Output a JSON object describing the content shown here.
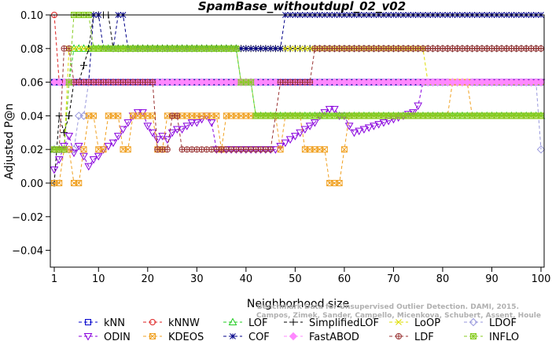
{
  "chart_data": {
    "type": "line",
    "title": "SpamBase_withoutdupl_02_v02",
    "xlabel": "Neighborhood size",
    "ylabel": "Adjusted P@n",
    "xlim": [
      1,
      100
    ],
    "ylim": [
      -0.05,
      0.1
    ],
    "xticks": [
      1,
      10,
      20,
      30,
      40,
      50,
      60,
      70,
      80,
      90,
      100
    ],
    "yticks": [
      -0.04,
      -0.02,
      0.0,
      0.02,
      0.04,
      0.06,
      0.08,
      0.1
    ],
    "ytick_labels": [
      "−0.04",
      "−0.02",
      "0.00",
      "0.02",
      "0.04",
      "0.06",
      "0.08",
      "0.10"
    ],
    "grid": false,
    "legend_position": "bottom",
    "watermark": [
      "Benchmark Data for Unsupervised Outlier Detection. DAMI, 2015.",
      "Campos, Zimek, Sander, Campello, Micenkova, Schubert, Assent, Houle"
    ],
    "series": [
      {
        "name": "kNN",
        "color": "#0000cc",
        "marker": "square",
        "segments": [
          [
            1,
            0.06
          ],
          [
            100,
            0.06
          ]
        ]
      },
      {
        "name": "kNNW",
        "color": "#dd2222",
        "marker": "circle",
        "segments": [
          [
            1,
            0.1
          ],
          [
            2,
            0.06
          ],
          [
            100,
            0.06
          ]
        ]
      },
      {
        "name": "LOF",
        "color": "#22cc22",
        "marker": "triangle-up",
        "segments": [
          [
            1,
            0.02
          ],
          [
            3,
            0.02
          ],
          [
            4,
            0.06
          ],
          [
            5,
            0.08
          ],
          [
            38,
            0.08
          ],
          [
            39,
            0.06
          ],
          [
            41,
            0.06
          ],
          [
            42,
            0.04
          ],
          [
            100,
            0.04
          ]
        ]
      },
      {
        "name": "SimplifiedLOF",
        "color": "#000000",
        "marker": "plus",
        "segments": [
          [
            1,
            0.0
          ],
          [
            2,
            0.04
          ],
          [
            3,
            0.03
          ],
          [
            4,
            0.04
          ],
          [
            5,
            0.06
          ],
          [
            6,
            0.06
          ],
          [
            8,
            0.08
          ],
          [
            9,
            0.1
          ],
          [
            12,
            0.1
          ],
          [
            13,
            0.08
          ],
          [
            100,
            0.08
          ]
        ]
      },
      {
        "name": "LoOP",
        "color": "#dddd00",
        "marker": "x",
        "segments": [
          [
            1,
            0.02
          ],
          [
            3,
            0.02
          ],
          [
            4,
            0.08
          ],
          [
            76,
            0.08
          ],
          [
            77,
            0.06
          ],
          [
            100,
            0.06
          ]
        ]
      },
      {
        "name": "LDOF",
        "color": "#9999dd",
        "marker": "diamond",
        "segments": [
          [
            1,
            0.02
          ],
          [
            5,
            0.02
          ],
          [
            6,
            0.04
          ],
          [
            7,
            0.04
          ],
          [
            8,
            0.06
          ],
          [
            99,
            0.06
          ],
          [
            100,
            0.02
          ]
        ]
      },
      {
        "name": "ODIN",
        "color": "#8800dd",
        "marker": "triangle-down",
        "segments": [
          [
            1,
            0.008
          ],
          [
            2,
            0.014
          ],
          [
            3,
            0.022
          ],
          [
            4,
            0.028
          ],
          [
            5,
            0.018
          ],
          [
            6,
            0.022
          ],
          [
            7,
            0.016
          ],
          [
            8,
            0.01
          ],
          [
            9,
            0.014
          ],
          [
            10,
            0.016
          ],
          [
            11,
            0.02
          ],
          [
            12,
            0.022
          ],
          [
            13,
            0.024
          ],
          [
            14,
            0.028
          ],
          [
            15,
            0.032
          ],
          [
            16,
            0.036
          ],
          [
            17,
            0.04
          ],
          [
            18,
            0.042
          ],
          [
            19,
            0.042
          ],
          [
            20,
            0.034
          ],
          [
            21,
            0.03
          ],
          [
            22,
            0.026
          ],
          [
            23,
            0.028
          ],
          [
            24,
            0.026
          ],
          [
            25,
            0.03
          ],
          [
            26,
            0.032
          ],
          [
            27,
            0.032
          ],
          [
            28,
            0.034
          ],
          [
            29,
            0.036
          ],
          [
            30,
            0.036
          ],
          [
            31,
            0.038
          ],
          [
            32,
            0.04
          ],
          [
            33,
            0.036
          ],
          [
            34,
            0.02
          ],
          [
            38,
            0.02
          ],
          [
            46,
            0.02
          ],
          [
            47,
            0.022
          ],
          [
            48,
            0.024
          ],
          [
            50,
            0.028
          ],
          [
            52,
            0.032
          ],
          [
            54,
            0.036
          ],
          [
            55,
            0.04
          ],
          [
            56,
            0.042
          ],
          [
            57,
            0.044
          ],
          [
            58,
            0.044
          ],
          [
            59,
            0.04
          ],
          [
            60,
            0.04
          ],
          [
            61,
            0.034
          ],
          [
            62,
            0.03
          ],
          [
            64,
            0.032
          ],
          [
            66,
            0.034
          ],
          [
            68,
            0.036
          ],
          [
            70,
            0.038
          ],
          [
            72,
            0.04
          ],
          [
            74,
            0.042
          ],
          [
            75,
            0.046
          ],
          [
            76,
            0.06
          ],
          [
            100,
            0.06
          ]
        ]
      },
      {
        "name": "KDEOS",
        "color": "#f0a020",
        "marker": "square-x",
        "segments": [
          [
            1,
            0.0
          ],
          [
            2,
            0.0
          ],
          [
            3,
            0.02
          ],
          [
            4,
            0.02
          ],
          [
            5,
            0.0
          ],
          [
            6,
            0.0
          ],
          [
            7,
            0.02
          ],
          [
            8,
            0.04
          ],
          [
            9,
            0.04
          ],
          [
            10,
            0.02
          ],
          [
            11,
            0.02
          ],
          [
            12,
            0.04
          ],
          [
            14,
            0.04
          ],
          [
            15,
            0.02
          ],
          [
            16,
            0.02
          ],
          [
            17,
            0.04
          ],
          [
            21,
            0.04
          ],
          [
            22,
            0.02
          ],
          [
            23,
            0.02
          ],
          [
            24,
            0.04
          ],
          [
            34,
            0.04
          ],
          [
            35,
            0.02
          ],
          [
            36,
            0.04
          ],
          [
            46,
            0.04
          ],
          [
            47,
            0.02
          ],
          [
            48,
            0.04
          ],
          [
            51,
            0.04
          ],
          [
            52,
            0.02
          ],
          [
            56,
            0.02
          ],
          [
            57,
            0.0
          ],
          [
            58,
            0.0
          ],
          [
            59,
            0.0
          ],
          [
            60,
            0.02
          ],
          [
            61,
            0.04
          ],
          [
            81,
            0.04
          ],
          [
            82,
            0.06
          ],
          [
            85,
            0.06
          ],
          [
            86,
            0.04
          ],
          [
            100,
            0.04
          ]
        ]
      },
      {
        "name": "COF",
        "color": "#000088",
        "marker": "asterisk",
        "segments": [
          [
            1,
            0.06
          ],
          [
            8,
            0.06
          ],
          [
            9,
            0.1
          ],
          [
            10,
            0.1
          ],
          [
            11,
            0.08
          ],
          [
            13,
            0.08
          ],
          [
            14,
            0.1
          ],
          [
            15,
            0.1
          ],
          [
            16,
            0.08
          ],
          [
            47,
            0.08
          ],
          [
            48,
            0.1
          ],
          [
            100,
            0.1
          ]
        ]
      },
      {
        "name": "FastABOD",
        "color": "#ff88ff",
        "marker": "diamond-filled",
        "segments": [
          [
            1,
            0.06
          ],
          [
            100,
            0.06
          ]
        ]
      },
      {
        "name": "LDF",
        "color": "#993333",
        "marker": "circle-plus",
        "segments": [
          [
            1,
            0.02
          ],
          [
            2,
            0.02
          ],
          [
            3,
            0.08
          ],
          [
            4,
            0.08
          ],
          [
            5,
            0.06
          ],
          [
            21,
            0.06
          ],
          [
            22,
            0.02
          ],
          [
            24,
            0.02
          ],
          [
            25,
            0.04
          ],
          [
            26,
            0.04
          ],
          [
            27,
            0.02
          ],
          [
            45,
            0.02
          ],
          [
            46,
            0.04
          ],
          [
            47,
            0.06
          ],
          [
            53,
            0.06
          ],
          [
            54,
            0.08
          ],
          [
            100,
            0.08
          ]
        ]
      },
      {
        "name": "INFLO",
        "color": "#88cc22",
        "marker": "star-box",
        "segments": [
          [
            1,
            0.02
          ],
          [
            3,
            0.02
          ],
          [
            4,
            0.06
          ],
          [
            5,
            0.1
          ],
          [
            8,
            0.1
          ],
          [
            9,
            0.08
          ],
          [
            38,
            0.08
          ],
          [
            39,
            0.06
          ],
          [
            41,
            0.06
          ],
          [
            42,
            0.04
          ],
          [
            100,
            0.04
          ]
        ]
      }
    ]
  }
}
